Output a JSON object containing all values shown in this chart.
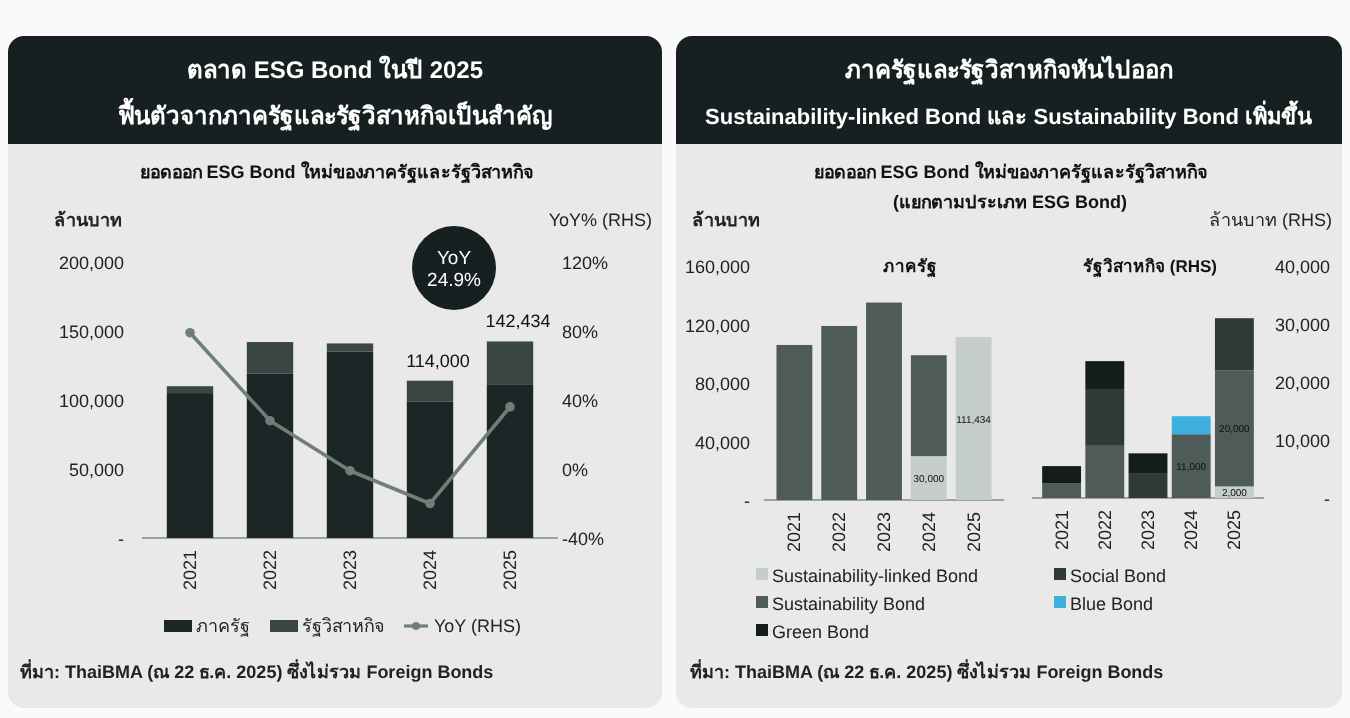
{
  "chart_data": [
    {
      "type": "bar",
      "stacked": true,
      "title": "ตลาด ESG Bond ในปี 2025",
      "subtitle": "ฟื้นตัวจากภาครัฐและรัฐวิสาหกิจเป็นสำคัญ",
      "ylabel": "ล้านบาท",
      "y2label": "YoY% (RHS)",
      "categories": [
        "2021",
        "2022",
        "2023",
        "2024",
        "2025"
      ],
      "ylim": [
        0,
        200000
      ],
      "yticks": [
        {
          "value": 0,
          "label": "-"
        },
        {
          "value": 50000,
          "label": "50,000"
        },
        {
          "value": 100000,
          "label": "100,000"
        },
        {
          "value": 150000,
          "label": "150,000"
        },
        {
          "value": 200000,
          "label": "200,000"
        }
      ],
      "y2lim": [
        -40,
        120
      ],
      "y2ticks": [
        {
          "value": -40,
          "label": "-40%"
        },
        {
          "value": 0,
          "label": "0%"
        },
        {
          "value": 40,
          "label": "40%"
        },
        {
          "value": 80,
          "label": "80%"
        },
        {
          "value": 120,
          "label": "120%"
        }
      ],
      "series": [
        {
          "name": "ภาครัฐ",
          "color": "#1c2626",
          "values": [
            105000,
            119000,
            135000,
            99000,
            111434
          ]
        },
        {
          "name": "รัฐวิสาหกิจ",
          "color": "#3a4644",
          "values": [
            5000,
            23000,
            6000,
            15000,
            31000
          ]
        },
        {
          "name": "YoY (RHS)",
          "type": "line",
          "axis": "y2",
          "color": "#6f7f78",
          "marker": "circle",
          "values": [
            79,
            28,
            -1,
            -20,
            36
          ]
        }
      ],
      "legend": "bottom",
      "annotations": [
        "ยอดออก ESG Bond ใหม่ของภาครัฐและรัฐวิสาหกิจ",
        {
          "text": "114,000",
          "x": "2024",
          "y": 114000
        },
        {
          "text": "142,434",
          "x": "2025",
          "y": 142434
        },
        "YoY 24.9%",
        "ที่มา: ThaiBMA (ณ 22 ธ.ค. 2025) ซึ่งไม่รวม Foreign Bonds"
      ]
    },
    {
      "type": "bar",
      "stacked": true,
      "title": "ภาครัฐและรัฐวิสาหกิจหันไปออก",
      "subtitle": "Sustainability-linked Bond และ Sustainability Bond เพิ่มขึ้น",
      "ylabel": "ล้านบาท",
      "categories": [
        "2021",
        "2022",
        "2023",
        "2024",
        "2025"
      ],
      "ylim": [
        0,
        160000
      ],
      "yticks": [
        {
          "value": 0,
          "label": "-"
        },
        {
          "value": 40000,
          "label": "40,000"
        },
        {
          "value": 80000,
          "label": "80,000"
        },
        {
          "value": 120000,
          "label": "120,000"
        },
        {
          "value": 160000,
          "label": "160,000"
        }
      ],
      "series": [
        {
          "name": "Sustainability-linked Bond",
          "color": "#c5cdc8",
          "values": [
            null,
            null,
            null,
            30000,
            111434
          ],
          "value_labels": [
            null,
            null,
            null,
            "30,000",
            "111,434"
          ]
        },
        {
          "name": "Sustainability Bond",
          "color": "#4f5b58",
          "values": [
            106000,
            119000,
            135000,
            69000,
            null
          ]
        },
        {
          "name": "Green Bond",
          "color": "#141c1c",
          "values": [
            null,
            null,
            null,
            null,
            null
          ]
        }
      ],
      "legend": "bottom left",
      "annotations": [
        "ยอดออก ESG Bond ใหม่ของภาครัฐและรัฐวิสาหกิจ",
        "(แยกตามประเภท ESG Bond)",
        "ภาครัฐ",
        "ที่มา: ThaiBMA (ณ 22 ธ.ค. 2025) ซึ่งไม่รวม Foreign Bonds"
      ]
    },
    {
      "type": "bar",
      "stacked": true,
      "y2label": "ล้านบาท (RHS)",
      "categories": [
        "2021",
        "2022",
        "2023",
        "2024",
        "2025"
      ],
      "y2lim": [
        0,
        40000
      ],
      "y2ticks": [
        {
          "value": 0,
          "label": "-"
        },
        {
          "value": 10000,
          "label": "10,000"
        },
        {
          "value": 20000,
          "label": "20,000"
        },
        {
          "value": 30000,
          "label": "30,000"
        },
        {
          "value": 40000,
          "label": "40,000"
        }
      ],
      "series": [
        {
          "color": "#c5cdc8",
          "axis": "y2",
          "values": [
            null,
            null,
            null,
            null,
            2000
          ],
          "value_labels": [
            null,
            null,
            null,
            null,
            "2,000"
          ]
        },
        {
          "color": "#4f5b58",
          "axis": "y2",
          "values": [
            2500,
            9000,
            null,
            11000,
            20000
          ],
          "value_labels": [
            null,
            null,
            null,
            "11,000",
            "20,000"
          ]
        },
        {
          "name": "Social Bond",
          "color": "#2f3a38",
          "axis": "y2",
          "values": [
            null,
            9800,
            4300,
            null,
            9000
          ]
        },
        {
          "color": "#141c1c",
          "axis": "y2",
          "values": [
            3000,
            4800,
            3400,
            null,
            null
          ]
        },
        {
          "name": "Blue Bond",
          "color": "#3db0e0",
          "axis": "y2",
          "values": [
            null,
            null,
            null,
            3100,
            null
          ]
        }
      ],
      "legend": "bottom",
      "annotations": [
        "รัฐวิสาหกิจ (RHS)"
      ]
    }
  ]
}
